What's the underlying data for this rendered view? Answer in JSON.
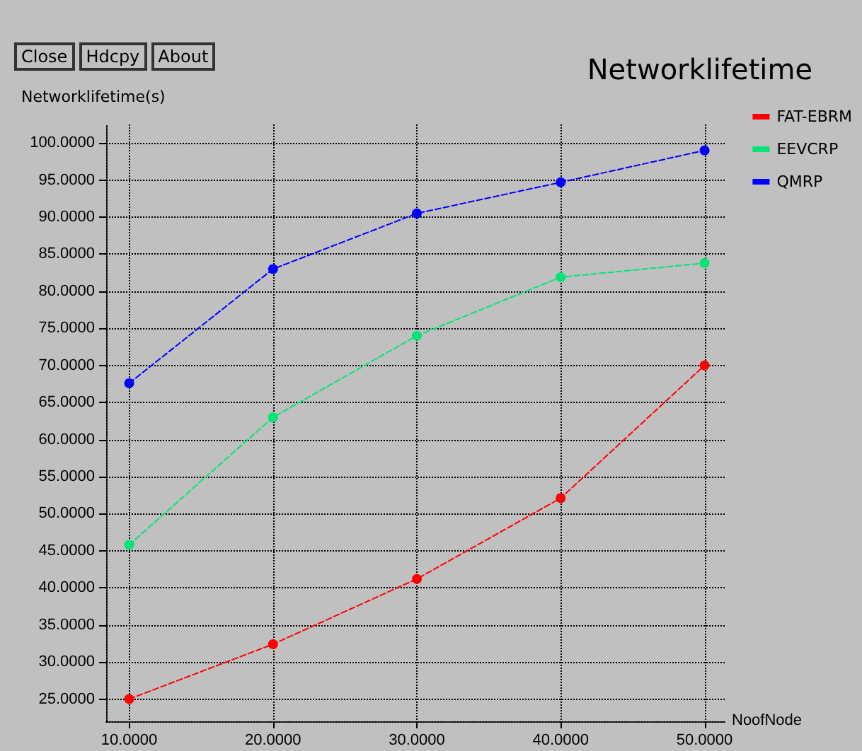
{
  "chart_data": {
    "type": "line",
    "title": "Networklifetime",
    "xlabel": "NoofNode",
    "ylabel": "Networklifetime(s)",
    "annotations": [
      "Close",
      "Hdcpy",
      "About"
    ],
    "x": [
      10,
      20,
      30,
      40,
      50
    ],
    "series": [
      {
        "name": "FAT-EBRM",
        "color": "#ff0000",
        "values": [
          25.0,
          32.4,
          41.2,
          52.1,
          70.0
        ]
      },
      {
        "name": "EEVCRP",
        "color": "#00e676",
        "values": [
          45.8,
          63.0,
          74.0,
          81.9,
          83.8
        ]
      },
      {
        "name": "QMRP",
        "color": "#0000ff",
        "values": [
          67.6,
          83.0,
          90.5,
          94.7,
          99.0
        ]
      }
    ],
    "xlim": [
      8.4,
      51.5
    ],
    "xticks": [
      {
        "value": 10,
        "label": "10.0000"
      },
      {
        "value": 20,
        "label": "20.0000"
      },
      {
        "value": 30,
        "label": "30.0000"
      },
      {
        "value": 40,
        "label": "40.0000"
      },
      {
        "value": 50,
        "label": "50.0000"
      }
    ],
    "ylim": [
      22,
      102.5
    ],
    "yticks": [
      {
        "value": 25,
        "label": "25.0000"
      },
      {
        "value": 30,
        "label": "30.0000"
      },
      {
        "value": 35,
        "label": "35.0000"
      },
      {
        "value": 40,
        "label": "40.0000"
      },
      {
        "value": 45,
        "label": "45.0000"
      },
      {
        "value": 50,
        "label": "50.0000"
      },
      {
        "value": 55,
        "label": "55.0000"
      },
      {
        "value": 60,
        "label": "60.0000"
      },
      {
        "value": 65,
        "label": "65.0000"
      },
      {
        "value": 70,
        "label": "70.0000"
      },
      {
        "value": 75,
        "label": "75.0000"
      },
      {
        "value": 80,
        "label": "80.0000"
      },
      {
        "value": 85,
        "label": "85.0000"
      },
      {
        "value": 90,
        "label": "90.0000"
      },
      {
        "value": 95,
        "label": "95.0000"
      },
      {
        "value": 100,
        "label": "100.0000"
      }
    ],
    "grid": true,
    "legend": "top right",
    "marker": "circle",
    "line_style": "dashed"
  }
}
